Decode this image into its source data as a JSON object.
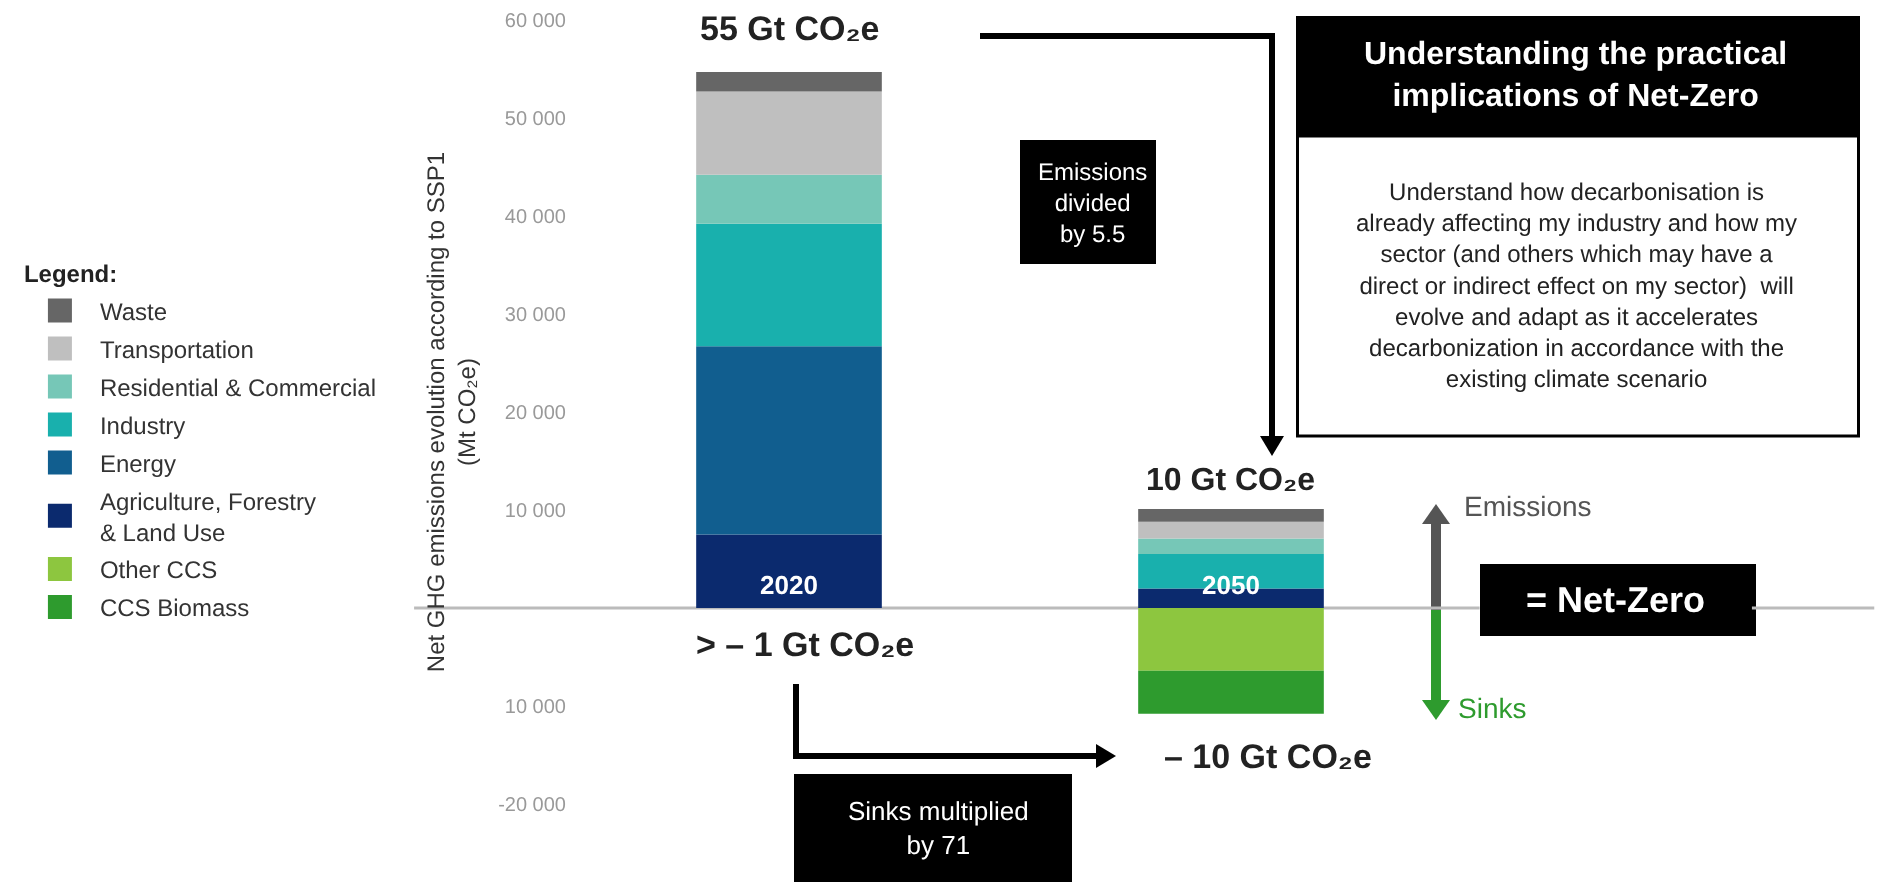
{
  "chart_data": {
    "type": "bar",
    "stacked": true,
    "ylabel": "Net GHG emissions evolution according to SSP1\n(Mt CO₂e)",
    "legend_title": "Legend:",
    "legend": "left",
    "grid": false,
    "tick_labels": "y",
    "categories": [
      "2020",
      "2050"
    ],
    "series": [
      {
        "name": "Agriculture, Forestry\n& Land Use",
        "color": "#0b2a6e",
        "values": [
          7500,
          2000
        ]
      },
      {
        "name": "Energy",
        "color": "#115e8f",
        "values": [
          19200,
          null
        ]
      },
      {
        "name": "Industry",
        "color": "#19b0ad",
        "values": [
          12500,
          3500
        ]
      },
      {
        "name": "Residential & Commercial",
        "color": "#76c7b7",
        "values": [
          5000,
          1600
        ]
      },
      {
        "name": "Transportation",
        "color": "#bfbfbf",
        "values": [
          8500,
          1700
        ]
      },
      {
        "name": "Waste",
        "color": "#666666",
        "values": [
          2000,
          1300
        ]
      },
      {
        "name": "Other CCS",
        "color": "#8dc63f",
        "values": [
          null,
          -6400
        ]
      },
      {
        "name": "CCS Biomass",
        "color": "#2e9b2e",
        "values": [
          null,
          -4400
        ]
      }
    ],
    "ylim": [
      -20000,
      60000
    ],
    "yticks": [
      {
        "value": -20000,
        "label": "-20 000"
      },
      {
        "value": -10000,
        "label": "10 000"
      },
      {
        "value": 10000,
        "label": "10 000"
      },
      {
        "value": 20000,
        "label": "20 000"
      },
      {
        "value": 30000,
        "label": "30 000"
      },
      {
        "value": 40000,
        "label": "40 000"
      },
      {
        "value": 50000,
        "label": "50 000"
      },
      {
        "value": 60000,
        "label": "60 000"
      }
    ],
    "annotations": [
      {
        "text": "55 Gt CO₂e",
        "x": "2020",
        "y": 54700
      },
      "> – 1 Gt CO₂e",
      {
        "text": "10 Gt CO₂e",
        "x": "2050",
        "y": 10100
      },
      {
        "text": "– 10 Gt CO₂e",
        "x": "2050",
        "y": -10800
      },
      "Emissions\ndivided\nby 5.5",
      "Sinks multiplied\nby 71",
      "Understanding the practical\nimplications of Net-Zero",
      "Understand how decarbonisation is\nalready affecting my industry and how my\nsector (and others which may have a\ndirect or indirect effect on my sector)  will\nevolve and adapt as it accelerates\ndecarbonization in accordance with the\nexisting climate scenario",
      "Emissions",
      "Sinks",
      "= Net-Zero"
    ]
  }
}
